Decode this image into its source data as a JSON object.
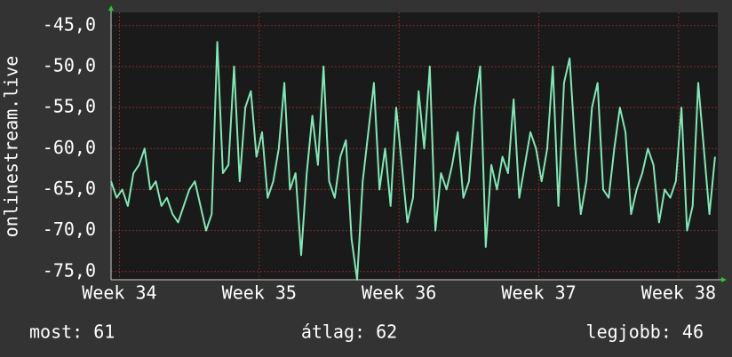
{
  "chart_data": {
    "type": "line",
    "y_label": "onlinestream.live",
    "x": [
      33.94,
      33.98,
      34.02,
      34.06,
      34.1,
      34.14,
      34.18,
      34.22,
      34.26,
      34.3,
      34.34,
      34.38,
      34.42,
      34.46,
      34.5,
      34.54,
      34.58,
      34.62,
      34.66,
      34.7,
      34.74,
      34.78,
      34.82,
      34.86,
      34.9,
      34.94,
      34.98,
      35.02,
      35.06,
      35.1,
      35.14,
      35.18,
      35.22,
      35.26,
      35.3,
      35.34,
      35.38,
      35.42,
      35.46,
      35.5,
      35.54,
      35.58,
      35.62,
      35.66,
      35.7,
      35.74,
      35.78,
      35.82,
      35.86,
      35.9,
      35.94,
      35.98,
      36.02,
      36.06,
      36.1,
      36.14,
      36.18,
      36.22,
      36.26,
      36.3,
      36.34,
      36.38,
      36.42,
      36.46,
      36.5,
      36.54,
      36.58,
      36.62,
      36.66,
      36.7,
      36.74,
      36.78,
      36.82,
      36.86,
      36.9,
      36.94,
      36.98,
      37.02,
      37.06,
      37.1,
      37.14,
      37.18,
      37.22,
      37.26,
      37.3,
      37.34,
      37.38,
      37.42,
      37.46,
      37.5,
      37.54,
      37.58,
      37.62,
      37.66,
      37.7,
      37.74,
      37.78,
      37.82,
      37.86,
      37.9,
      37.94,
      37.98,
      38.02,
      38.06,
      38.1,
      38.14,
      38.18,
      38.22,
      38.26
    ],
    "series": [
      {
        "color": "#7fe8b4",
        "values": [
          -64,
          -66,
          -65,
          -67,
          -63,
          -62,
          -60,
          -65,
          -64,
          -67,
          -66,
          -68,
          -69,
          -67,
          -65,
          -64,
          -67,
          -70,
          -68,
          -47,
          -63,
          -62,
          -50,
          -64,
          -55,
          -53,
          -61,
          -58,
          -66,
          -64,
          -60,
          -52,
          -65,
          -63,
          -73,
          -63,
          -56,
          -62,
          -50,
          -64,
          -66,
          -61,
          -59,
          -71,
          -76,
          -64,
          -58,
          -52,
          -65,
          -60,
          -67,
          -55,
          -62,
          -69,
          -66,
          -53,
          -60,
          -50,
          -70,
          -63,
          -65,
          -62,
          -58,
          -66,
          -64,
          -55,
          -50,
          -72,
          -62,
          -65,
          -61,
          -63,
          -54,
          -66,
          -62,
          -58,
          -60,
          -64,
          -60,
          -50,
          -67,
          -52,
          -49,
          -60,
          -68,
          -64,
          -55,
          -52,
          -65,
          -66,
          -60,
          -55,
          -58,
          -68,
          -65,
          -63,
          -60,
          -62,
          -69,
          -65,
          -66,
          -64,
          -55,
          -70,
          -67,
          -52,
          -60,
          -68,
          -61
        ]
      }
    ],
    "xlim": [
      33.94,
      38.28
    ],
    "xticks": [
      {
        "value": 34,
        "label": "Week 34"
      },
      {
        "value": 35,
        "label": "Week 35"
      },
      {
        "value": 36,
        "label": "Week 36"
      },
      {
        "value": 37,
        "label": "Week 37"
      },
      {
        "value": 38,
        "label": "Week 38"
      }
    ],
    "ylim": [
      -76,
      -43.4
    ],
    "yticks": [
      {
        "value": -45,
        "label": "-45,0"
      },
      {
        "value": -50,
        "label": "-50,0"
      },
      {
        "value": -55,
        "label": "-55,0"
      },
      {
        "value": -60,
        "label": "-60,0"
      },
      {
        "value": -65,
        "label": "-65,0"
      },
      {
        "value": -70,
        "label": "-70,0"
      },
      {
        "value": -75,
        "label": "-75,0"
      }
    ],
    "grid": true,
    "footer": {
      "current": "most: 61",
      "average": "átlag: 62",
      "best": "legjobb: 46"
    }
  }
}
